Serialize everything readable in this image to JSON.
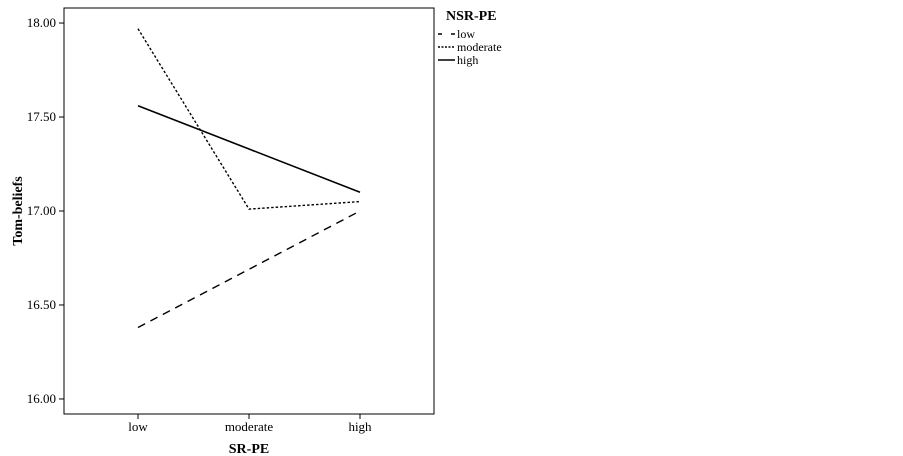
{
  "chart_data": {
    "type": "line",
    "title": "",
    "xlabel": "SR-PE",
    "ylabel": "Tom-beliefs",
    "categories": [
      "low",
      "moderate",
      "high"
    ],
    "ylim": [
      15.92,
      18.08
    ],
    "yticks": [
      16.0,
      16.5,
      17.0,
      17.5,
      18.0
    ],
    "ytick_labels": [
      "16.00",
      "16.50",
      "17.00",
      "17.50",
      "18.00"
    ],
    "grid": false,
    "legend": {
      "title": "NSR-PE",
      "placement": "right"
    },
    "series": [
      {
        "name": "low",
        "style": "dashed",
        "values": [
          16.38,
          16.69,
          17.0
        ]
      },
      {
        "name": "moderate",
        "style": "dotted",
        "values": [
          17.97,
          17.01,
          17.05
        ]
      },
      {
        "name": "high",
        "style": "solid",
        "values": [
          17.56,
          17.33,
          17.1
        ]
      }
    ]
  }
}
